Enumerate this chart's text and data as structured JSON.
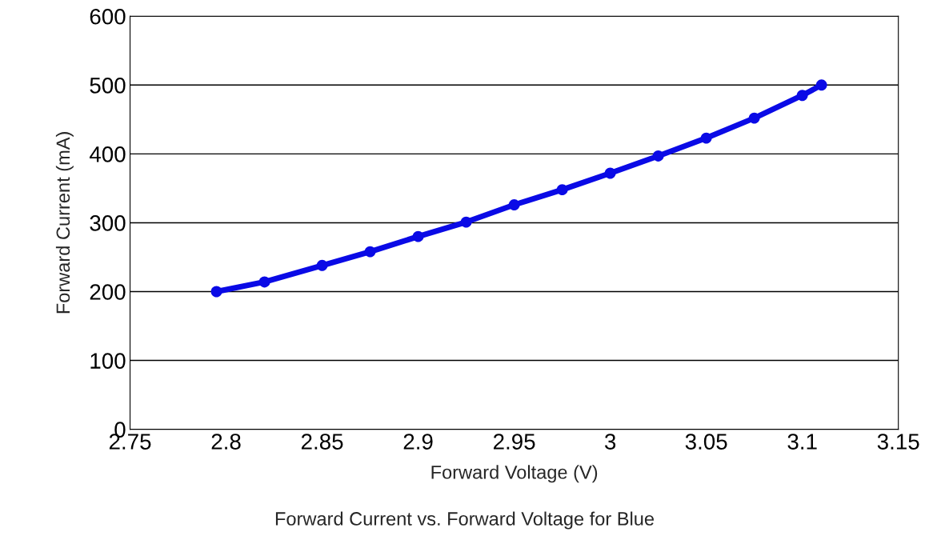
{
  "chart_data": {
    "type": "line",
    "title": "Forward Current vs. Forward Voltage for Blue",
    "xlabel": "Forward Voltage (V)",
    "ylabel": "Forward Current (mA)",
    "x": [
      2.795,
      2.82,
      2.85,
      2.875,
      2.9,
      2.925,
      2.95,
      2.975,
      3.0,
      3.025,
      3.05,
      3.075,
      3.1,
      3.11
    ],
    "series": [
      {
        "color": "#0a0ae6",
        "values": [
          200,
          214,
          238,
          258,
          280,
          301,
          326,
          348,
          372,
          397,
          423,
          452,
          485,
          500
        ]
      }
    ],
    "xlim": [
      2.75,
      3.15
    ],
    "xticks": [
      2.75,
      2.8,
      2.85,
      2.9,
      2.95,
      3,
      3.05,
      3.1,
      3.15
    ],
    "ylim": [
      0,
      600
    ],
    "yticks": [
      0,
      100,
      200,
      300,
      400,
      500,
      600
    ],
    "grid": "y",
    "marker": "circle"
  }
}
